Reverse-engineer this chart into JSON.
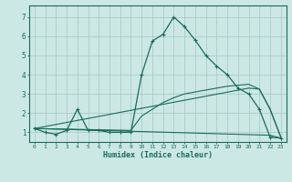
{
  "title": "",
  "xlabel": "Humidex (Indice chaleur)",
  "background_color": "#cce8e4",
  "grid_color": "#aaccc8",
  "line_color": "#1a6b5a",
  "xlim": [
    -0.5,
    23.5
  ],
  "ylim": [
    0.5,
    7.6
  ],
  "x_ticks": [
    0,
    1,
    2,
    3,
    4,
    5,
    6,
    7,
    8,
    9,
    10,
    11,
    12,
    13,
    14,
    15,
    16,
    17,
    18,
    19,
    20,
    21,
    22,
    23
  ],
  "y_ticks": [
    1,
    2,
    3,
    4,
    5,
    6,
    7
  ],
  "series1_x": [
    0,
    1,
    2,
    3,
    4,
    5,
    6,
    7,
    8,
    9,
    10,
    11,
    12,
    13,
    14,
    15,
    16,
    17,
    18,
    19,
    20,
    21,
    22,
    23
  ],
  "series1_y": [
    1.2,
    1.0,
    0.9,
    1.1,
    2.2,
    1.1,
    1.1,
    1.0,
    1.0,
    1.0,
    4.0,
    5.75,
    6.1,
    7.0,
    6.5,
    5.8,
    5.0,
    4.45,
    4.0,
    3.3,
    3.0,
    2.2,
    0.75,
    0.7
  ],
  "series2_x": [
    0,
    22,
    23
  ],
  "series2_y": [
    1.2,
    0.85,
    0.7
  ],
  "series3_x": [
    0,
    20,
    21,
    22,
    23
  ],
  "series3_y": [
    1.2,
    3.3,
    3.25,
    2.2,
    0.75
  ],
  "series4_x": [
    0,
    9,
    10,
    11,
    12,
    13,
    14,
    15,
    16,
    17,
    18,
    19,
    20,
    21,
    22,
    23
  ],
  "series4_y": [
    1.2,
    1.1,
    1.85,
    2.2,
    2.55,
    2.8,
    3.0,
    3.1,
    3.2,
    3.3,
    3.4,
    3.45,
    3.5,
    3.25,
    2.2,
    0.75
  ]
}
